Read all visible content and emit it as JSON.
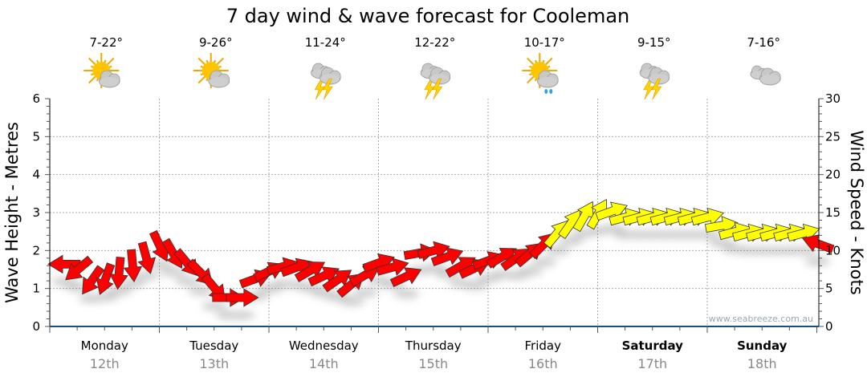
{
  "chart_data": {
    "type": "scatter",
    "title": "7 day wind & wave forecast for Cooleman",
    "ylabel": "Wave Height - Metres",
    "y2label": "Wind Speed - Knots",
    "ylim": [
      0,
      6
    ],
    "y2lim": [
      0,
      30
    ],
    "yticks": [
      "0",
      "1",
      "2",
      "3",
      "4",
      "5",
      "6"
    ],
    "y2ticks": [
      "0",
      "5",
      "10",
      "15",
      "20",
      "25",
      "30"
    ],
    "grid": true,
    "watermark": "www.seabreeze.com.au",
    "days": [
      {
        "name": "Monday",
        "date": "12th",
        "temp": "7-22°",
        "icon": "partly-cloudy",
        "bold": false
      },
      {
        "name": "Tuesday",
        "date": "13th",
        "temp": "9-26°",
        "icon": "partly-cloudy",
        "bold": false
      },
      {
        "name": "Wednesday",
        "date": "14th",
        "temp": "11-24°",
        "icon": "storm",
        "bold": false
      },
      {
        "name": "Thursday",
        "date": "15th",
        "temp": "12-22°",
        "icon": "storm",
        "bold": false
      },
      {
        "name": "Friday",
        "date": "16th",
        "temp": "10-17°",
        "icon": "sun-showers",
        "bold": false
      },
      {
        "name": "Saturday",
        "date": "17th",
        "temp": "9-15°",
        "icon": "storm",
        "bold": true
      },
      {
        "name": "Sunday",
        "date": "18th",
        "temp": "7-16°",
        "icon": "cloudy",
        "bold": true
      }
    ],
    "wind": {
      "unit": "knots",
      "interval_hours": 3,
      "speeds": [
        8.2,
        7.5,
        6,
        6.2,
        7,
        8,
        9,
        10.5,
        9.5,
        8.3,
        7,
        5,
        3.8,
        3.8,
        6.3,
        7.3,
        7.9,
        7.8,
        7.4,
        6.7,
        6.2,
        5.6,
        6.8,
        8.4,
        7.8,
        6.6,
        9.7,
        10,
        9.2,
        8,
        7.7,
        8.7,
        9.2,
        9,
        9.6,
        10.8,
        12.3,
        13.6,
        14.6,
        14.9,
        15.2,
        14.4,
        14.4,
        14.4,
        14.4,
        14.4,
        14.4,
        14.4,
        13.3,
        12.5,
        12.3,
        12.3,
        12.3,
        12.3,
        12.3,
        10.9
      ],
      "directions": [
        180,
        140,
        125,
        110,
        95,
        85,
        75,
        65,
        60,
        50,
        45,
        50,
        0,
        0,
        -20,
        -25,
        -15,
        -20,
        -30,
        -25,
        -35,
        -40,
        -30,
        -20,
        -15,
        -25,
        -10,
        -15,
        -20,
        -30,
        -25,
        -20,
        -30,
        -35,
        -40,
        -45,
        -50,
        -55,
        -60,
        -60,
        -20,
        -15,
        -15,
        -15,
        -15,
        -15,
        -15,
        -15,
        -10,
        -15,
        -15,
        -15,
        -15,
        -15,
        -15,
        200
      ],
      "colors": [
        "red",
        "red",
        "red",
        "red",
        "red",
        "red",
        "red",
        "red",
        "red",
        "red",
        "red",
        "red",
        "red",
        "red",
        "red",
        "red",
        "red",
        "red",
        "red",
        "red",
        "red",
        "red",
        "red",
        "red",
        "red",
        "red",
        "red",
        "red",
        "red",
        "red",
        "red",
        "red",
        "red",
        "red",
        "red",
        "red",
        "yellow",
        "yellow",
        "yellow",
        "yellow",
        "yellow",
        "yellow",
        "yellow",
        "yellow",
        "yellow",
        "yellow",
        "yellow",
        "yellow",
        "yellow",
        "yellow",
        "yellow",
        "yellow",
        "yellow",
        "yellow",
        "yellow",
        "red"
      ]
    },
    "colors": {
      "red": "#ff0000",
      "yellow": "#ffff00",
      "axis": "#1a4f7a"
    }
  }
}
